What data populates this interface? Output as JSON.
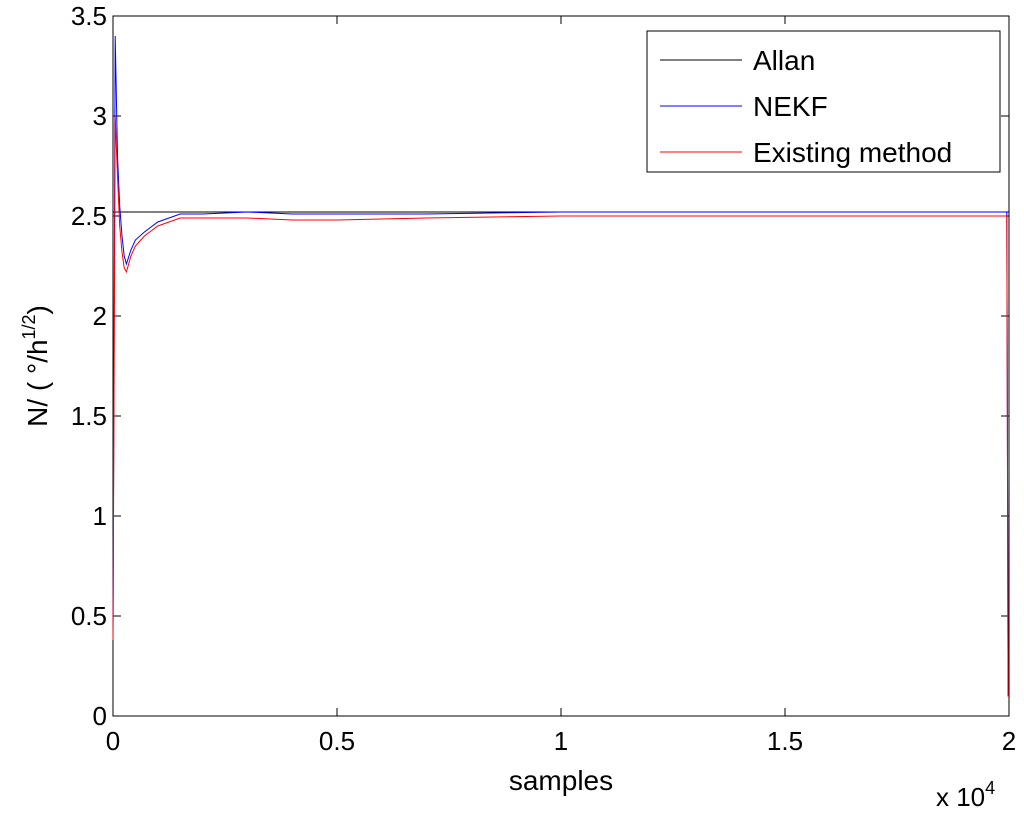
{
  "chart_data": {
    "type": "line",
    "xlabel": "samples",
    "ylabel_main": "N/ ( °/h",
    "ylabel_sup": "1/2",
    "ylabel_close": ")",
    "x_multiplier_base": "x 10",
    "x_multiplier_exp": "4",
    "xlim": [
      0,
      2
    ],
    "ylim": [
      0,
      3.5
    ],
    "x_ticks": [
      0,
      0.5,
      1,
      1.5,
      2
    ],
    "x_tick_labels": [
      "0",
      "0.5",
      "1",
      "1.5",
      "2"
    ],
    "y_ticks": [
      0,
      0.5,
      1,
      1.5,
      2,
      2.5,
      3,
      3.5
    ],
    "y_tick_labels": [
      "0",
      "0.5",
      "1",
      "1.5",
      "2",
      "2.5",
      "3",
      "3.5"
    ],
    "grid": false,
    "legend_position": "top-right",
    "series": [
      {
        "name": "Allan",
        "color": "#000000",
        "x": [
          0,
          2
        ],
        "y": [
          2.52,
          2.52
        ]
      },
      {
        "name": "NEKF",
        "color": "#0000ff",
        "x": [
          0,
          0.005,
          0.01,
          0.015,
          0.02,
          0.025,
          0.03,
          0.04,
          0.05,
          0.07,
          0.1,
          0.15,
          0.2,
          0.3,
          0.4,
          0.5,
          0.7,
          1.0,
          1.3,
          1.6,
          1.9,
          1.995,
          1.998,
          2.0
        ],
        "y": [
          0.4,
          3.4,
          2.8,
          2.55,
          2.4,
          2.3,
          2.26,
          2.33,
          2.38,
          2.42,
          2.47,
          2.51,
          2.51,
          2.52,
          2.51,
          2.51,
          2.51,
          2.52,
          2.52,
          2.52,
          2.52,
          2.52,
          0.1,
          0.1
        ]
      },
      {
        "name": "Existing method",
        "color": "#ff0000",
        "x": [
          0,
          0.005,
          0.01,
          0.015,
          0.02,
          0.025,
          0.03,
          0.04,
          0.05,
          0.07,
          0.1,
          0.15,
          0.2,
          0.3,
          0.4,
          0.5,
          0.7,
          1.0,
          1.3,
          1.6,
          1.9,
          1.995,
          1.998,
          2.0
        ],
        "y": [
          0.38,
          3.0,
          2.7,
          2.45,
          2.32,
          2.24,
          2.22,
          2.3,
          2.35,
          2.4,
          2.45,
          2.49,
          2.49,
          2.49,
          2.48,
          2.48,
          2.49,
          2.5,
          2.5,
          2.5,
          2.5,
          2.5,
          0.1,
          0.1
        ]
      }
    ]
  }
}
